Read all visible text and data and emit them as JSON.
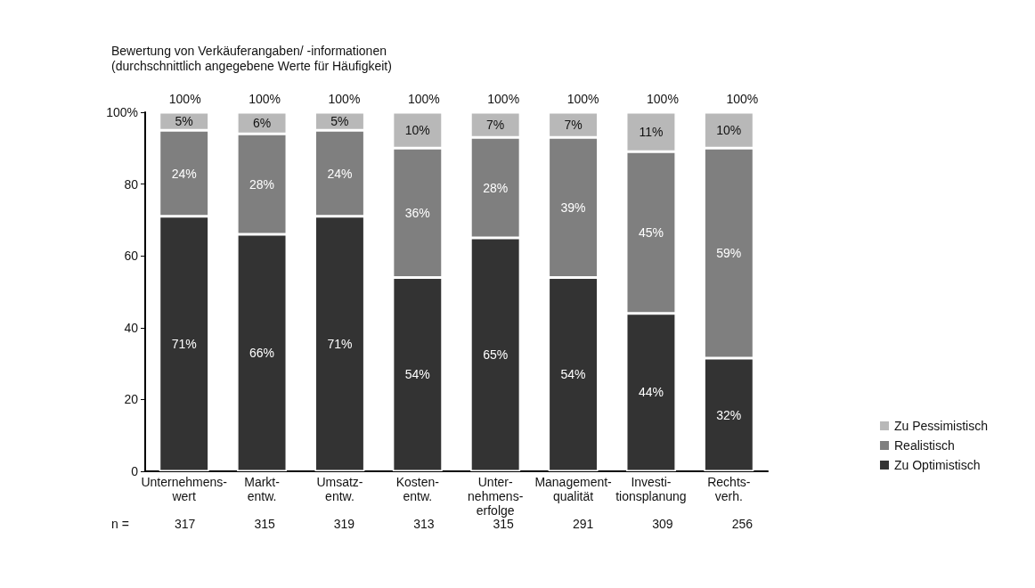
{
  "chart_data": {
    "type": "bar",
    "stacked": true,
    "title": "Bewertung von Verkäuferangaben/ -informationen\n(durchschnittlich angegebene Werte für Häufigkeit)",
    "categories": [
      "Unternehmens-\nwert",
      "Markt-\nentw.",
      "Umsatz-\nentw.",
      "Kosten-\nentw.",
      "Unter-\nnehmens-\nerfolge",
      "Management-\nqualität",
      "Investi-\ntionsplanung",
      "Rechts-\nverh."
    ],
    "series": [
      {
        "name": "Zu Optimistisch",
        "color": "#333333",
        "values": [
          71,
          66,
          71,
          54,
          65,
          54,
          44,
          31.5
        ],
        "value_labels": [
          "71%",
          "66%",
          "71%",
          "54%",
          "65%",
          "54%",
          "44%",
          "32%"
        ]
      },
      {
        "name": "Realistisch",
        "color": "#7f7f7f",
        "values": [
          24,
          28,
          24,
          36,
          28,
          39,
          45,
          58.5
        ],
        "value_labels": [
          "24%",
          "28%",
          "24%",
          "36%",
          "28%",
          "39%",
          "45%",
          "59%"
        ]
      },
      {
        "name": "Zu Pessimistisch",
        "color": "#b8b8b8",
        "values": [
          5,
          6,
          5,
          10,
          7,
          7,
          11,
          10
        ],
        "value_labels": [
          "5%",
          "6%",
          "5%",
          "10%",
          "7%",
          "7%",
          "11%",
          "10%"
        ]
      }
    ],
    "totals": [
      "100%",
      "100%",
      "100%",
      "100%",
      "100%",
      "100%",
      "100%",
      "100%"
    ],
    "ylim": [
      0,
      100
    ],
    "yticks": [
      0,
      20,
      40,
      60,
      80,
      {
        "value": 100,
        "label": "100%"
      }
    ],
    "grid": false,
    "legend": "right",
    "annotations": [
      "n =",
      "317",
      "315",
      "319",
      "313",
      "315",
      "291",
      "309",
      "256"
    ]
  }
}
